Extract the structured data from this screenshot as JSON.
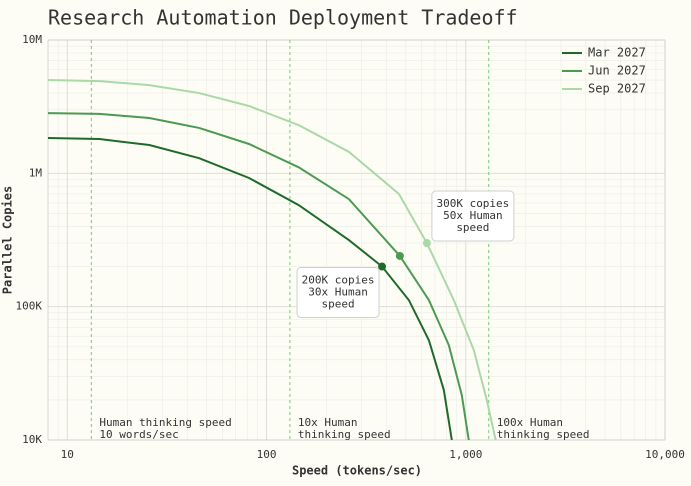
{
  "chart_data": {
    "type": "line",
    "title": "Research Automation Deployment Tradeoff",
    "x_label": "Speed (tokens/sec)",
    "y_label": "Parallel Copies",
    "xlog": true,
    "ylog": true,
    "grid": true,
    "minor_grid": true,
    "legend": "upper right",
    "xlim": [
      8,
      10000
    ],
    "ylim": [
      10000,
      10000000
    ],
    "xticks": [
      10,
      100,
      {
        "value": 1000,
        "label": "1,000"
      },
      {
        "value": 10000,
        "label": "10,000"
      }
    ],
    "yticks": [
      {
        "value": 10000,
        "label": "10K"
      },
      {
        "value": 100000,
        "label": "100K"
      },
      {
        "value": 1000000,
        "label": "1M"
      },
      {
        "value": 10000000,
        "label": "10M"
      }
    ],
    "series": [
      {
        "name": "Mar 2027",
        "color": "#1f6a2b",
        "x": [
          8,
          14.5,
          25.8,
          45.9,
          81.7,
          145,
          259,
          380,
          518,
          653,
          776,
          851
        ],
        "values": [
          1840000,
          1810000,
          1630000,
          1300000,
          923000,
          578000,
          316000,
          200000,
          112000,
          56000,
          23700,
          10000
        ],
        "marker": {
          "x": 380,
          "y": 200000
        }
      },
      {
        "name": "Jun 2027",
        "color": "#4b9a50",
        "x": [
          8,
          14.5,
          25.8,
          45.9,
          81.7,
          145,
          259,
          467,
          653,
          822,
          955,
          1035
        ],
        "values": [
          2830000,
          2790000,
          2600000,
          2190000,
          1660000,
          1110000,
          641000,
          240000,
          112000,
          51500,
          21700,
          10000
        ],
        "marker": {
          "x": 467,
          "y": 240000
        }
      },
      {
        "name": "Sep 2027",
        "color": "#a9d9a6",
        "x": [
          8,
          14.5,
          25.8,
          45.9,
          81.7,
          145,
          259,
          462,
          638,
          871,
          1097,
          1274,
          1413
        ],
        "values": [
          5010000,
          4920000,
          4590000,
          4000000,
          3200000,
          2300000,
          1450000,
          700000,
          300000,
          112000,
          47300,
          20000,
          10000
        ],
        "marker": {
          "x": 638,
          "y": 300000
        }
      }
    ],
    "reference_lines": [
      {
        "x": 13.2,
        "lines": [
          "Human thinking speed",
          "10 words/sec"
        ]
      },
      {
        "x": 131,
        "lines": [
          "10x Human",
          "thinking speed"
        ]
      },
      {
        "x": 1304,
        "lines": [
          "100x Human",
          "thinking speed"
        ]
      }
    ],
    "annotations": [
      {
        "x": 380,
        "y": 200000,
        "lines": [
          "200K copies",
          "30x Human",
          "speed"
        ]
      },
      {
        "x": 638,
        "y": 300000,
        "lines": [
          "300K copies",
          "50x Human",
          "speed"
        ]
      }
    ]
  }
}
